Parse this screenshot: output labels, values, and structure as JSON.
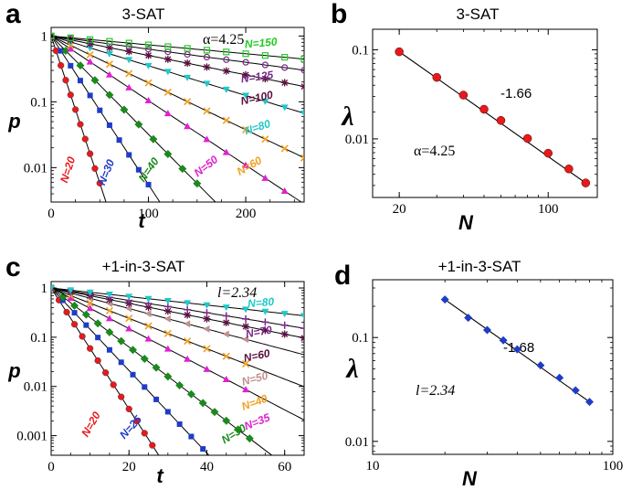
{
  "chart_data": [
    {
      "id": "a",
      "panel_letter": "a",
      "type": "scatter",
      "title": "3-SAT",
      "xlabel": "t",
      "ylabel": "p",
      "xscale": "linear",
      "yscale": "log",
      "xlim": [
        0,
        260
      ],
      "ylim": [
        0.003,
        1.35
      ],
      "xticks": [
        0,
        100,
        200
      ],
      "xtick_labels": [
        "0",
        "100",
        "200"
      ],
      "yticks": [
        1,
        0.1,
        0.01
      ],
      "ytick_labels": [
        "1",
        "0.1",
        "0.01"
      ],
      "annotation": "α=4.25",
      "series": [
        {
          "name": "N=20",
          "label": "N=20",
          "color": "#e8191b",
          "marker": "circle",
          "decay": 0.103,
          "x": [
            0,
            5,
            10,
            15,
            20,
            25,
            30,
            35,
            40,
            45,
            50
          ]
        },
        {
          "name": "N=30",
          "label": "N=30",
          "color": "#1f3cc7",
          "marker": "square",
          "decay": 0.052,
          "x": [
            0,
            10,
            20,
            30,
            40,
            50,
            60,
            70,
            80,
            90,
            100
          ]
        },
        {
          "name": "N=40",
          "label": "N=40",
          "color": "#1a8a1a",
          "marker": "diamond",
          "decay": 0.0344,
          "x": [
            0,
            15,
            30,
            45,
            60,
            75,
            90,
            105,
            120,
            135,
            150
          ]
        },
        {
          "name": "N=50",
          "label": "N=50",
          "color": "#e020d0",
          "marker": "triangle",
          "decay": 0.0226,
          "x": [
            0,
            20,
            40,
            60,
            80,
            100,
            120,
            140,
            160,
            180,
            200,
            220,
            240
          ]
        },
        {
          "name": "N=60",
          "label": "N=60",
          "color": "#f0a020",
          "marker": "x",
          "decay": 0.0164,
          "x": [
            0,
            20,
            40,
            60,
            80,
            100,
            120,
            140,
            160,
            180,
            200,
            220,
            240,
            260
          ]
        },
        {
          "name": "N=80",
          "label": "N=80",
          "color": "#20c8c8",
          "marker": "tri-down",
          "decay": 0.0104,
          "x": [
            0,
            20,
            40,
            60,
            80,
            100,
            120,
            140,
            160,
            180,
            200,
            220,
            240,
            260
          ]
        },
        {
          "name": "N=100",
          "label": "N=100",
          "color": "#5a0f3e",
          "marker": "star",
          "decay": 0.0068,
          "x": [
            0,
            20,
            40,
            60,
            80,
            100,
            120,
            140,
            160,
            180,
            200,
            220,
            240,
            260
          ]
        },
        {
          "name": "N=125",
          "label": "N=125",
          "color": "#7a2a8a",
          "marker": "circle-open",
          "decay": 0.0046,
          "x": [
            0,
            20,
            40,
            60,
            80,
            100,
            120,
            140,
            160,
            180,
            200,
            220,
            240,
            260
          ]
        },
        {
          "name": "N=150",
          "label": "N=150",
          "color": "#22cc22",
          "marker": "square-open",
          "decay": 0.0031,
          "x": [
            0,
            20,
            40,
            60,
            80,
            100,
            120,
            140,
            160,
            180,
            200,
            220,
            240,
            260
          ]
        }
      ]
    },
    {
      "id": "b",
      "panel_letter": "b",
      "type": "scatter",
      "title": "3-SAT",
      "xlabel": "N",
      "ylabel": "λ",
      "xscale": "log",
      "yscale": "log",
      "xlim": [
        15,
        170
      ],
      "ylim": [
        0.0022,
        0.17
      ],
      "xticks": [
        20,
        100
      ],
      "xtick_labels": [
        "20",
        "100"
      ],
      "yticks": [
        0.1,
        0.01
      ],
      "ytick_labels": [
        "0.1",
        "0.01"
      ],
      "annotation": "α=4.25",
      "slope_label": "-1.66",
      "series": [
        {
          "name": "λ(N)",
          "color": "#e8191b",
          "marker": "circle",
          "x": [
            20,
            30,
            40,
            50,
            60,
            80,
            100,
            125,
            150
          ],
          "y": [
            0.095,
            0.049,
            0.031,
            0.0215,
            0.0161,
            0.0101,
            0.0069,
            0.0046,
            0.0032
          ]
        }
      ]
    },
    {
      "id": "c",
      "panel_letter": "c",
      "type": "scatter",
      "title": "+1-in-3-SAT",
      "xlabel": "t",
      "ylabel": "p",
      "xscale": "linear",
      "yscale": "log",
      "xlim": [
        0,
        65
      ],
      "ylim": [
        0.0004,
        1.35
      ],
      "xticks": [
        0,
        20,
        40,
        60
      ],
      "xtick_labels": [
        "0",
        "20",
        "40",
        "60"
      ],
      "yticks": [
        1,
        0.1,
        0.01,
        0.001
      ],
      "ytick_labels": [
        "1",
        "0.1",
        "0.01",
        "0.001"
      ],
      "annotation": "l=2.34",
      "series": [
        {
          "name": "N=20",
          "label": "N=20",
          "color": "#e8191b",
          "marker": "circle",
          "decay": 0.283,
          "x": [
            0,
            2,
            4,
            6,
            8,
            10,
            12,
            14,
            16,
            18,
            20,
            22,
            24,
            26,
            28
          ]
        },
        {
          "name": "N=25",
          "label": "N=25",
          "color": "#1f3cc7",
          "marker": "square",
          "decay": 0.193,
          "x": [
            0,
            3,
            6,
            9,
            12,
            15,
            18,
            21,
            24,
            27,
            30,
            33,
            36,
            39
          ]
        },
        {
          "name": "N=30",
          "label": "N=30",
          "color": "#1a8a1a",
          "marker": "diamond",
          "decay": 0.138,
          "x": [
            0,
            3,
            6,
            9,
            12,
            15,
            18,
            21,
            24,
            27,
            30,
            33,
            36,
            39,
            42,
            45,
            48,
            51
          ]
        },
        {
          "name": "N=35",
          "label": "N=35",
          "color": "#e020d0",
          "marker": "triangle",
          "decay": 0.095,
          "x": [
            0,
            5,
            10,
            15,
            20,
            25,
            30,
            35,
            40,
            45,
            50
          ]
        },
        {
          "name": "N=40",
          "label": "N=40",
          "color": "#f0a020",
          "marker": "x",
          "decay": 0.071,
          "x": [
            0,
            5,
            10,
            15,
            20,
            25,
            30,
            35,
            40,
            45,
            50
          ]
        },
        {
          "name": "N=50",
          "label": "N=50",
          "color": "#c09090",
          "marker": "tri-left",
          "decay": 0.048,
          "x": [
            0,
            5,
            10,
            15,
            20,
            25,
            30,
            35,
            40,
            45,
            50
          ]
        },
        {
          "name": "N=60",
          "label": "N=60",
          "color": "#5a0f3e",
          "marker": "star",
          "decay": 0.036,
          "x": [
            0,
            5,
            10,
            15,
            20,
            25,
            30,
            35,
            40,
            45,
            50,
            55,
            60,
            65
          ]
        },
        {
          "name": "N=70",
          "label": "N=70",
          "color": "#7a2a8a",
          "marker": "plus",
          "decay": 0.029,
          "x": [
            0,
            5,
            10,
            15,
            20,
            25,
            30,
            35,
            40,
            45,
            50,
            55,
            60,
            65
          ]
        },
        {
          "name": "N=80",
          "label": "N=80",
          "color": "#20c8c8",
          "marker": "tri-down",
          "decay": 0.02,
          "x": [
            0,
            5,
            10,
            15,
            20,
            25,
            30,
            35,
            40,
            45,
            50,
            55,
            60,
            65
          ]
        }
      ]
    },
    {
      "id": "d",
      "panel_letter": "d",
      "type": "scatter",
      "title": "+1-in-3-SAT",
      "xlabel": "N",
      "ylabel": "λ",
      "xscale": "log",
      "yscale": "log",
      "xlim": [
        10,
        100
      ],
      "ylim": [
        0.0075,
        0.36
      ],
      "xticks": [
        10,
        100
      ],
      "xtick_labels": [
        "10",
        "100"
      ],
      "yticks": [
        0.1,
        0.01
      ],
      "ytick_labels": [
        "0.1",
        "0.01"
      ],
      "annotation": "l=2.34",
      "slope_label": "-1.68",
      "series": [
        {
          "name": "λ(N)",
          "color": "#1f3cc7",
          "marker": "diamond",
          "x": [
            20,
            25,
            30,
            35,
            40,
            50,
            60,
            70,
            80
          ],
          "y": [
            0.232,
            0.155,
            0.118,
            0.094,
            0.077,
            0.054,
            0.041,
            0.031,
            0.024
          ]
        }
      ]
    }
  ]
}
